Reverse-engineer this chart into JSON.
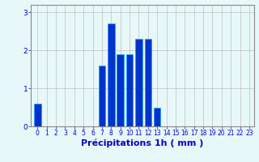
{
  "hours": [
    0,
    1,
    2,
    3,
    4,
    5,
    6,
    7,
    8,
    9,
    10,
    11,
    12,
    13,
    14,
    15,
    16,
    17,
    18,
    19,
    20,
    21,
    22,
    23
  ],
  "values": [
    0.6,
    0,
    0,
    0,
    0,
    0,
    0,
    1.6,
    2.7,
    1.9,
    1.9,
    2.3,
    2.3,
    0.5,
    0,
    0,
    0,
    0,
    0,
    0,
    0,
    0,
    0,
    0
  ],
  "bar_color": "#0033cc",
  "bar_edge_color": "#3399ff",
  "background_color": "#e8f8f8",
  "grid_color": "#aaaaaa",
  "tick_color": "#0000cc",
  "xlabel": "Précipitations 1h ( mm )",
  "xlabel_color": "#0000cc",
  "ylim": [
    0,
    3.2
  ],
  "yticks": [
    0,
    1,
    2,
    3
  ],
  "axis_label_fontsize": 8,
  "tick_fontsize": 5.5
}
